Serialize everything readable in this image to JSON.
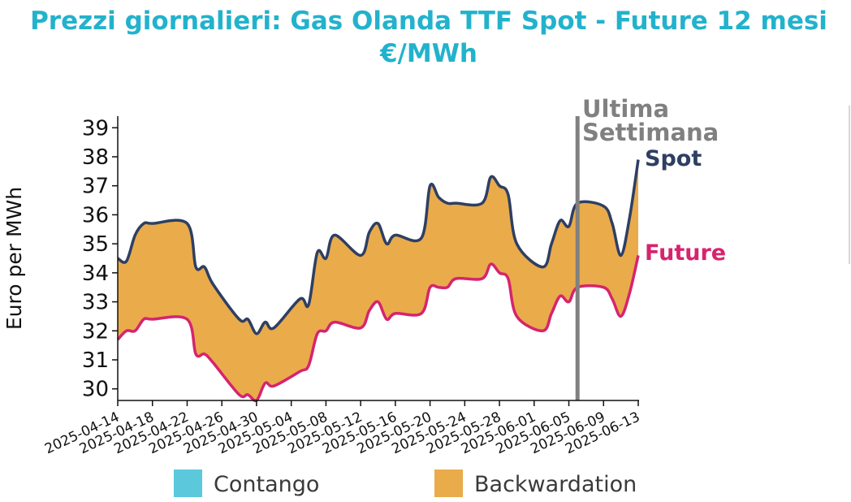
{
  "chart_data": {
    "type": "line",
    "title": "Prezzi giornalieri: Gas Olanda TTF Spot - Future 12 mesi",
    "subtitle": "€/MWh",
    "xlabel": "",
    "ylabel": "Euro per MWh",
    "ylim": [
      29.6,
      39.4
    ],
    "y_ticks": [
      30,
      31,
      32,
      33,
      34,
      35,
      36,
      37,
      38,
      39
    ],
    "x_range": [
      "2025-04-14",
      "2025-06-13"
    ],
    "x_ticks": [
      "2025-04-14",
      "2025-04-18",
      "2025-04-22",
      "2025-04-26",
      "2025-04-30",
      "2025-05-04",
      "2025-05-08",
      "2025-05-12",
      "2025-05-16",
      "2025-05-20",
      "2025-05-24",
      "2025-05-28",
      "2025-06-01",
      "2025-06-05",
      "2025-06-09",
      "2025-06-13"
    ],
    "x": [
      "2025-04-14",
      "2025-04-15",
      "2025-04-16",
      "2025-04-17",
      "2025-04-18",
      "2025-04-22",
      "2025-04-23",
      "2025-04-24",
      "2025-04-25",
      "2025-04-28",
      "2025-04-29",
      "2025-04-30",
      "2025-05-01",
      "2025-05-02",
      "2025-05-05",
      "2025-05-06",
      "2025-05-07",
      "2025-05-08",
      "2025-05-09",
      "2025-05-12",
      "2025-05-13",
      "2025-05-14",
      "2025-05-15",
      "2025-05-16",
      "2025-05-19",
      "2025-05-20",
      "2025-05-21",
      "2025-05-22",
      "2025-05-23",
      "2025-05-26",
      "2025-05-27",
      "2025-05-28",
      "2025-05-29",
      "2025-05-30",
      "2025-06-02",
      "2025-06-03",
      "2025-06-04",
      "2025-06-05",
      "2025-06-06",
      "2025-06-09",
      "2025-06-10",
      "2025-06-11",
      "2025-06-12",
      "2025-06-13"
    ],
    "series": [
      {
        "name": "Spot",
        "color": "#2e3f63",
        "values": [
          34.5,
          34.4,
          35.3,
          35.7,
          35.7,
          35.7,
          34.2,
          34.2,
          33.6,
          32.4,
          32.4,
          31.9,
          32.3,
          32.1,
          33.1,
          32.9,
          34.7,
          34.5,
          35.3,
          34.6,
          35.4,
          35.7,
          35.0,
          35.3,
          35.2,
          37.0,
          36.6,
          36.4,
          36.4,
          36.4,
          37.3,
          37.0,
          36.7,
          35.0,
          34.2,
          35.0,
          35.8,
          35.6,
          36.4,
          36.3,
          35.7,
          34.6,
          35.9,
          37.9
        ]
      },
      {
        "name": "Future",
        "color": "#d6246e",
        "values": [
          31.7,
          32.0,
          32.0,
          32.4,
          32.4,
          32.4,
          31.2,
          31.2,
          30.9,
          29.8,
          29.8,
          29.6,
          30.2,
          30.1,
          30.6,
          30.8,
          31.9,
          32.0,
          32.3,
          32.1,
          32.7,
          33.0,
          32.4,
          32.6,
          32.6,
          33.5,
          33.5,
          33.5,
          33.8,
          33.8,
          34.3,
          34.0,
          33.8,
          32.5,
          32.0,
          32.6,
          33.2,
          33.0,
          33.5,
          33.5,
          33.1,
          32.5,
          33.3,
          34.6
        ]
      }
    ],
    "fill_between": {
      "upper": "Spot",
      "lower": "Future"
    },
    "marker_line": {
      "x": "2025-06-06",
      "label_line1": "Ultima",
      "label_line2": "Settimana",
      "color": "#808080"
    },
    "legend": {
      "placement": "bottom",
      "items": [
        {
          "label": "Contango",
          "color": "#5bc8dc"
        },
        {
          "label": "Backwardation",
          "color": "#eaab4b"
        }
      ]
    },
    "grid": false
  }
}
